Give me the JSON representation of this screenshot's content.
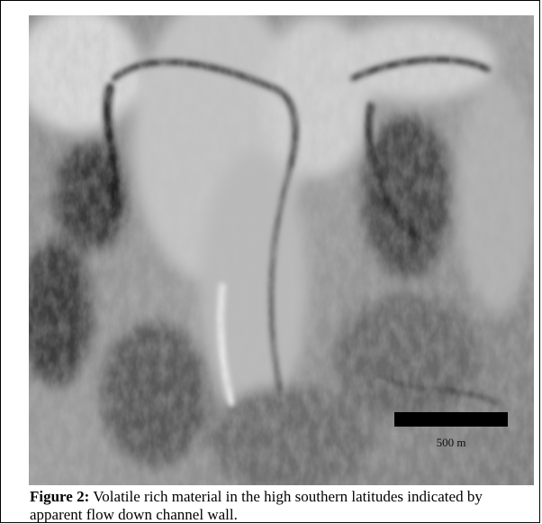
{
  "figure": {
    "scale_bar_label": "500 m",
    "caption_label": "Figure 2:",
    "caption_text": "Volatile rich material in the high southern latitudes indicated by apparent flow down channel wall."
  }
}
